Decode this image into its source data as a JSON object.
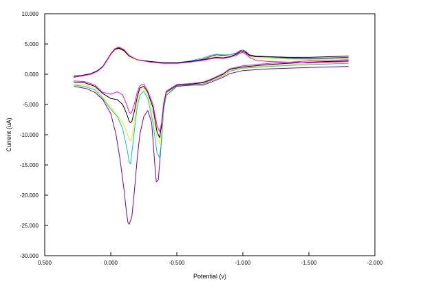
{
  "chart_data": {
    "type": "line",
    "title": "",
    "xlabel": "Potential (v)",
    "ylabel": "Current (uA)",
    "xlim": [
      0.5,
      -2.0
    ],
    "ylim": [
      -30,
      10
    ],
    "x_ticks": [
      {
        "value": 0.5,
        "label": "0.500"
      },
      {
        "value": 0.0,
        "label": "0.000"
      },
      {
        "value": -0.5,
        "label": "-0.500"
      },
      {
        "value": -1.0,
        "label": "-1.000"
      },
      {
        "value": -1.5,
        "label": "-1.500"
      },
      {
        "value": -2.0,
        "label": "-2.000"
      }
    ],
    "y_ticks": [
      {
        "value": 10,
        "label": "10.000"
      },
      {
        "value": 5,
        "label": "5.000"
      },
      {
        "value": 0,
        "label": "0.000"
      },
      {
        "value": -5,
        "label": "-5.000"
      },
      {
        "value": -10,
        "label": "-10.000"
      },
      {
        "value": -15,
        "label": "-15.000"
      },
      {
        "value": -20,
        "label": "-20.000"
      },
      {
        "value": -25,
        "label": "-25.000"
      },
      {
        "value": -30,
        "label": "-30.000"
      }
    ],
    "grid": false,
    "legend": "none",
    "series": [
      {
        "color": "#800080",
        "x": [
          -1.8,
          -1.5,
          -1.2,
          -1.0,
          -0.9,
          -0.85,
          -0.75,
          -0.7,
          -0.62,
          -0.5,
          -0.42,
          -0.4,
          -0.38,
          -0.36,
          -0.345,
          -0.33,
          -0.31,
          -0.28,
          -0.25,
          -0.22,
          -0.2,
          -0.18,
          -0.16,
          -0.14,
          -0.13,
          -0.12,
          -0.1,
          -0.07,
          -0.04,
          0.0,
          0.06,
          0.12,
          0.18,
          0.25,
          0.28
        ],
        "y": [
          1.3,
          1.1,
          0.9,
          0.6,
          0.1,
          -0.5,
          -1.4,
          -1.8,
          -1.8,
          -2.0,
          -3.5,
          -6.0,
          -12.0,
          -17.5,
          -17.8,
          -14.0,
          -8.0,
          -6.0,
          -7.0,
          -10.0,
          -14.0,
          -19.0,
          -23.5,
          -24.8,
          -24.5,
          -23.0,
          -19.0,
          -14.0,
          -10.0,
          -6.5,
          -4.2,
          -3.0,
          -2.4,
          -2.1,
          -2.0
        ]
      },
      {
        "color": "#00C8C8",
        "x": [
          -1.8,
          -1.5,
          -1.2,
          -1.0,
          -0.9,
          -0.85,
          -0.75,
          -0.7,
          -0.62,
          -0.5,
          -0.42,
          -0.4,
          -0.385,
          -0.37,
          -0.35,
          -0.32,
          -0.28,
          -0.25,
          -0.22,
          -0.2,
          -0.18,
          -0.16,
          -0.15,
          -0.14,
          -0.12,
          -0.09,
          -0.05,
          0.0,
          0.06,
          0.12,
          0.2,
          0.28
        ],
        "y": [
          1.8,
          1.6,
          1.3,
          1.0,
          0.5,
          -0.3,
          -1.2,
          -1.6,
          -1.7,
          -1.9,
          -3.5,
          -6.0,
          -11.0,
          -13.8,
          -13.0,
          -8.0,
          -4.0,
          -2.8,
          -3.5,
          -5.5,
          -9.0,
          -13.0,
          -14.8,
          -14.5,
          -12.0,
          -9.0,
          -7.0,
          -5.8,
          -4.0,
          -2.6,
          -2.0,
          -1.8
        ]
      },
      {
        "color": "#F0F000",
        "x": [
          -1.8,
          -1.5,
          -1.2,
          -1.0,
          -0.9,
          -0.85,
          -0.75,
          -0.7,
          -0.62,
          -0.5,
          -0.42,
          -0.4,
          -0.385,
          -0.37,
          -0.35,
          -0.32,
          -0.28,
          -0.25,
          -0.22,
          -0.2,
          -0.18,
          -0.16,
          -0.15,
          -0.14,
          -0.12,
          -0.09,
          -0.05,
          0.0,
          0.06,
          0.12,
          0.2,
          0.28
        ],
        "y": [
          2.0,
          1.8,
          1.4,
          1.1,
          0.6,
          -0.2,
          -1.1,
          -1.5,
          -1.6,
          -1.8,
          -3.2,
          -5.5,
          -9.5,
          -11.5,
          -10.5,
          -6.5,
          -3.5,
          -2.3,
          -2.8,
          -4.5,
          -7.5,
          -10.5,
          -11.0,
          -10.8,
          -9.5,
          -8.0,
          -6.8,
          -5.5,
          -3.8,
          -2.3,
          -1.7,
          -1.6
        ]
      },
      {
        "color": "#000000",
        "x": [
          -1.8,
          -1.5,
          -1.2,
          -1.0,
          -0.9,
          -0.85,
          -0.75,
          -0.7,
          -0.62,
          -0.5,
          -0.42,
          -0.4,
          -0.385,
          -0.37,
          -0.35,
          -0.32,
          -0.28,
          -0.25,
          -0.22,
          -0.2,
          -0.18,
          -0.16,
          -0.15,
          -0.14,
          -0.12,
          -0.09,
          -0.05,
          0.0,
          0.06,
          0.12,
          0.2,
          0.28
        ],
        "y": [
          2.2,
          2.0,
          1.6,
          1.2,
          0.8,
          0.0,
          -1.0,
          -1.4,
          -1.6,
          -1.8,
          -3.0,
          -5.2,
          -8.5,
          -10.5,
          -9.5,
          -5.5,
          -3.0,
          -2.0,
          -2.3,
          -3.8,
          -6.0,
          -7.8,
          -8.0,
          -7.8,
          -6.5,
          -5.0,
          -4.2,
          -4.0,
          -3.2,
          -2.0,
          -1.4,
          -1.3
        ]
      },
      {
        "color": "#FF00FF",
        "x": [
          -1.8,
          -1.5,
          -1.2,
          -1.0,
          -0.9,
          -0.85,
          -0.75,
          -0.7,
          -0.62,
          -0.5,
          -0.42,
          -0.4,
          -0.385,
          -0.37,
          -0.35,
          -0.32,
          -0.28,
          -0.25,
          -0.22,
          -0.2,
          -0.18,
          -0.16,
          -0.15,
          -0.14,
          -0.12,
          -0.09,
          -0.05,
          0.0,
          0.06,
          0.12,
          0.2,
          0.28
        ],
        "y": [
          2.4,
          2.2,
          1.8,
          1.4,
          0.9,
          0.1,
          -0.9,
          -1.3,
          -1.5,
          -1.7,
          -2.8,
          -4.8,
          -8.0,
          -9.5,
          -8.5,
          -5.0,
          -2.8,
          -1.6,
          -1.9,
          -3.0,
          -4.8,
          -6.2,
          -6.5,
          -6.3,
          -5.0,
          -3.4,
          -2.9,
          -3.3,
          -3.0,
          -1.8,
          -1.2,
          -1.1
        ]
      },
      {
        "color": "#800080",
        "x": [
          0.28,
          0.22,
          0.15,
          0.1,
          0.06,
          0.03,
          0.0,
          -0.03,
          -0.06,
          -0.1,
          -0.14,
          -0.2,
          -0.3,
          -0.4,
          -0.5,
          -0.6,
          -0.7,
          -0.75,
          -0.8,
          -0.85,
          -0.9,
          -0.95,
          -0.98,
          -1.0,
          -1.02,
          -1.05,
          -1.1,
          -1.2,
          -1.35,
          -1.5,
          -1.65,
          -1.8
        ],
        "y": [
          -0.5,
          -0.3,
          0.0,
          0.5,
          1.3,
          2.3,
          3.4,
          4.2,
          4.4,
          4.0,
          3.0,
          2.4,
          2.1,
          1.9,
          1.9,
          2.1,
          2.5,
          2.9,
          3.2,
          3.1,
          3.2,
          3.5,
          3.9,
          4.0,
          3.8,
          3.2,
          3.0,
          2.9,
          2.7,
          2.6,
          2.7,
          2.8
        ]
      },
      {
        "color": "#00C8C8",
        "x": [
          0.28,
          0.22,
          0.15,
          0.1,
          0.06,
          0.03,
          0.0,
          -0.03,
          -0.06,
          -0.1,
          -0.14,
          -0.2,
          -0.3,
          -0.4,
          -0.5,
          -0.6,
          -0.7,
          -0.75,
          -0.8,
          -0.85,
          -0.9,
          -0.95,
          -0.98,
          -1.0,
          -1.02,
          -1.05,
          -1.1,
          -1.2,
          -1.35,
          -1.5,
          -1.65,
          -1.8
        ],
        "y": [
          -0.4,
          -0.3,
          0.0,
          0.5,
          1.3,
          2.2,
          3.3,
          4.1,
          4.3,
          3.9,
          3.0,
          2.4,
          2.1,
          1.9,
          1.9,
          2.2,
          2.7,
          3.1,
          3.3,
          3.2,
          3.2,
          3.4,
          3.7,
          3.8,
          3.6,
          3.1,
          2.9,
          2.8,
          2.6,
          2.5,
          2.6,
          2.7
        ]
      },
      {
        "color": "#F0F000",
        "x": [
          0.28,
          0.22,
          0.15,
          0.1,
          0.06,
          0.03,
          0.0,
          -0.03,
          -0.06,
          -0.1,
          -0.14,
          -0.2,
          -0.3,
          -0.4,
          -0.5,
          -0.6,
          -0.7,
          -0.75,
          -0.8,
          -0.85,
          -0.9,
          -0.95,
          -0.98,
          -1.0,
          -1.02,
          -1.05,
          -1.1,
          -1.2,
          -1.35,
          -1.5,
          -1.65,
          -1.8
        ],
        "y": [
          -0.4,
          -0.3,
          0.0,
          0.5,
          1.2,
          2.2,
          3.2,
          4.0,
          4.2,
          3.8,
          2.9,
          2.3,
          2.0,
          1.8,
          1.8,
          2.0,
          2.4,
          2.7,
          2.9,
          2.8,
          2.9,
          3.1,
          3.4,
          3.5,
          3.3,
          2.9,
          2.7,
          2.6,
          2.5,
          2.4,
          2.5,
          2.6
        ]
      },
      {
        "color": "#000000",
        "x": [
          0.28,
          0.22,
          0.15,
          0.1,
          0.06,
          0.03,
          0.0,
          -0.03,
          -0.06,
          -0.1,
          -0.14,
          -0.2,
          -0.3,
          -0.4,
          -0.5,
          -0.6,
          -0.7,
          -0.75,
          -0.8,
          -0.85,
          -0.9,
          -0.95,
          -0.98,
          -1.0,
          -1.02,
          -1.05,
          -1.1,
          -1.2,
          -1.35,
          -1.5,
          -1.65,
          -1.8
        ],
        "y": [
          -0.3,
          -0.2,
          0.1,
          0.6,
          1.3,
          2.3,
          3.3,
          4.1,
          4.3,
          3.9,
          3.0,
          2.4,
          2.1,
          1.9,
          1.9,
          2.1,
          2.4,
          2.6,
          2.8,
          2.7,
          2.9,
          3.3,
          3.7,
          3.8,
          3.6,
          3.1,
          2.9,
          2.9,
          2.8,
          2.8,
          2.9,
          3.0
        ]
      },
      {
        "color": "#FF00FF",
        "x": [
          0.28,
          0.22,
          0.15,
          0.1,
          0.06,
          0.03,
          0.0,
          -0.03,
          -0.06,
          -0.1,
          -0.14,
          -0.2,
          -0.3,
          -0.4,
          -0.5,
          -0.6,
          -0.7,
          -0.75,
          -0.8,
          -0.85,
          -0.9,
          -0.95,
          -0.98,
          -1.0,
          -1.02,
          -1.05,
          -1.1,
          -1.2,
          -1.35,
          -1.5,
          -1.65,
          -1.8
        ],
        "y": [
          -0.4,
          -0.3,
          0.0,
          0.5,
          1.2,
          2.2,
          3.3,
          4.2,
          4.5,
          4.1,
          3.1,
          2.4,
          2.0,
          1.8,
          1.8,
          2.0,
          2.3,
          2.5,
          2.7,
          2.6,
          2.8,
          3.1,
          3.5,
          3.6,
          3.4,
          2.8,
          2.3,
          2.1,
          2.0,
          1.9,
          2.0,
          2.1
        ]
      }
    ]
  }
}
